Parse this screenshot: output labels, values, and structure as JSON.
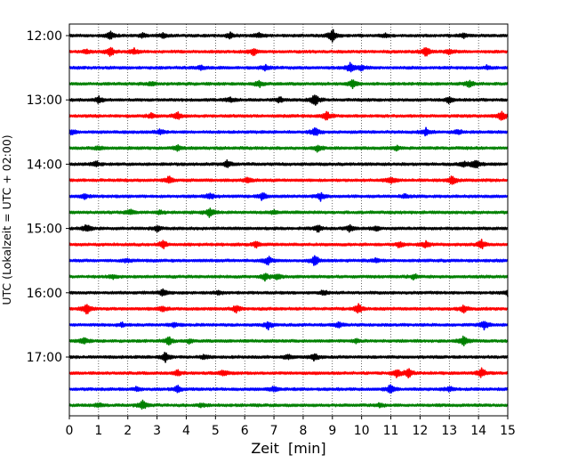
{
  "chart_data": {
    "type": "line",
    "xlabel": "Zeit  [min]",
    "ylabel": "UTC (Lokalzeit = UTC + 02:00)",
    "xlim": [
      0,
      15
    ],
    "x_ticks": [
      0,
      1,
      2,
      3,
      4,
      5,
      6,
      7,
      8,
      9,
      10,
      11,
      12,
      13,
      14,
      15
    ],
    "y_tick_labels": [
      "12:00",
      "13:00",
      "14:00",
      "15:00",
      "16:00",
      "17:00"
    ],
    "vertical_grid": "dotted at each minute",
    "trace_colors": [
      "#000000",
      "#ff0000",
      "#0000ff",
      "#008000"
    ],
    "rows_per_hour": 4,
    "row_interval_min": 15,
    "start_time": "12:00",
    "traces": [
      {
        "start": "12:00",
        "events": [
          [
            1.4,
            0.6
          ],
          [
            2.5,
            0.3
          ],
          [
            3.2,
            0.3
          ],
          [
            5.5,
            0.5
          ],
          [
            6.5,
            0.4
          ],
          [
            9.0,
            1.0
          ],
          [
            10.8,
            0.3
          ],
          [
            13.5,
            0.3
          ]
        ]
      },
      {
        "start": "12:15",
        "events": [
          [
            0.6,
            0.3
          ],
          [
            1.4,
            0.8
          ],
          [
            2.2,
            0.5
          ],
          [
            6.3,
            0.6
          ],
          [
            12.2,
            0.9
          ],
          [
            13.0,
            0.4
          ]
        ]
      },
      {
        "start": "12:30",
        "events": [
          [
            4.5,
            0.3
          ],
          [
            6.7,
            0.4
          ],
          [
            9.6,
            0.7
          ],
          [
            10.0,
            0.4
          ],
          [
            14.3,
            0.3
          ]
        ]
      },
      {
        "start": "12:45",
        "events": [
          [
            2.8,
            0.3
          ],
          [
            6.5,
            0.5
          ],
          [
            9.7,
            0.7
          ],
          [
            13.7,
            0.6
          ]
        ]
      },
      {
        "start": "13:00",
        "events": [
          [
            1.0,
            0.5
          ],
          [
            5.5,
            0.4
          ],
          [
            7.2,
            0.4
          ],
          [
            8.4,
            1.0
          ],
          [
            13.0,
            0.5
          ]
        ]
      },
      {
        "start": "13:15",
        "events": [
          [
            2.8,
            0.4
          ],
          [
            3.7,
            0.6
          ],
          [
            8.8,
            0.7
          ],
          [
            14.8,
            0.8
          ]
        ]
      },
      {
        "start": "13:30",
        "events": [
          [
            0.1,
            0.4
          ],
          [
            3.1,
            0.4
          ],
          [
            8.4,
            0.8
          ],
          [
            12.2,
            0.6
          ],
          [
            13.3,
            0.4
          ]
        ]
      },
      {
        "start": "13:45",
        "events": [
          [
            1.0,
            0.3
          ],
          [
            3.7,
            0.4
          ],
          [
            8.5,
            0.5
          ],
          [
            11.2,
            0.3
          ]
        ]
      },
      {
        "start": "14:00",
        "events": [
          [
            0.9,
            0.5
          ],
          [
            5.4,
            0.6
          ],
          [
            13.9,
            0.8
          ],
          [
            13.5,
            0.4
          ]
        ]
      },
      {
        "start": "14:15",
        "events": [
          [
            3.4,
            0.6
          ],
          [
            6.1,
            0.4
          ],
          [
            11.0,
            0.6
          ],
          [
            13.1,
            0.7
          ]
        ]
      },
      {
        "start": "14:30",
        "events": [
          [
            0.5,
            0.4
          ],
          [
            4.8,
            0.5
          ],
          [
            6.6,
            0.6
          ],
          [
            8.6,
            0.6
          ],
          [
            11.5,
            0.3
          ]
        ]
      },
      {
        "start": "14:45",
        "events": [
          [
            2.1,
            0.4
          ],
          [
            3.1,
            0.3
          ],
          [
            4.8,
            0.8
          ],
          [
            7.0,
            0.3
          ]
        ]
      },
      {
        "start": "15:00",
        "events": [
          [
            0.6,
            0.6
          ],
          [
            3.0,
            0.4
          ],
          [
            8.5,
            0.5
          ],
          [
            9.6,
            0.6
          ],
          [
            10.5,
            0.4
          ]
        ]
      },
      {
        "start": "15:15",
        "events": [
          [
            3.2,
            0.6
          ],
          [
            6.4,
            0.4
          ],
          [
            11.3,
            0.5
          ],
          [
            12.2,
            0.5
          ],
          [
            14.1,
            0.8
          ]
        ]
      },
      {
        "start": "15:30",
        "events": [
          [
            2.0,
            0.3
          ],
          [
            6.8,
            0.7
          ],
          [
            8.4,
            0.8
          ],
          [
            10.5,
            0.3
          ]
        ]
      },
      {
        "start": "15:45",
        "events": [
          [
            1.5,
            0.3
          ],
          [
            6.7,
            0.6
          ],
          [
            7.1,
            0.5
          ],
          [
            11.8,
            0.4
          ]
        ]
      },
      {
        "start": "16:00",
        "events": [
          [
            3.2,
            0.5
          ],
          [
            5.1,
            0.4
          ],
          [
            8.7,
            0.4
          ],
          [
            15.0,
            0.5
          ]
        ]
      },
      {
        "start": "16:15",
        "events": [
          [
            0.6,
            0.9
          ],
          [
            3.2,
            0.4
          ],
          [
            5.7,
            0.5
          ],
          [
            9.9,
            0.7
          ],
          [
            13.5,
            0.6
          ]
        ]
      },
      {
        "start": "16:30",
        "events": [
          [
            1.8,
            0.3
          ],
          [
            3.6,
            0.4
          ],
          [
            6.8,
            0.6
          ],
          [
            9.2,
            0.4
          ],
          [
            14.2,
            0.7
          ]
        ]
      },
      {
        "start": "16:45",
        "events": [
          [
            0.5,
            0.6
          ],
          [
            3.4,
            0.7
          ],
          [
            4.1,
            0.3
          ],
          [
            9.8,
            0.3
          ],
          [
            13.5,
            0.8
          ]
        ]
      },
      {
        "start": "17:00",
        "events": [
          [
            3.3,
            0.8
          ],
          [
            4.6,
            0.3
          ],
          [
            7.5,
            0.4
          ],
          [
            8.4,
            0.6
          ]
        ]
      },
      {
        "start": "17:15",
        "events": [
          [
            3.7,
            0.5
          ],
          [
            5.3,
            0.5
          ],
          [
            11.2,
            0.6
          ],
          [
            11.6,
            0.7
          ],
          [
            14.1,
            0.8
          ]
        ]
      },
      {
        "start": "17:30",
        "events": [
          [
            2.3,
            0.3
          ],
          [
            3.7,
            0.5
          ],
          [
            7.0,
            0.5
          ],
          [
            11.0,
            0.8
          ],
          [
            13.0,
            0.4
          ]
        ]
      },
      {
        "start": "17:45",
        "events": [
          [
            1.0,
            0.3
          ],
          [
            2.5,
            0.8
          ],
          [
            4.5,
            0.3
          ],
          [
            10.6,
            0.3
          ]
        ]
      }
    ]
  }
}
